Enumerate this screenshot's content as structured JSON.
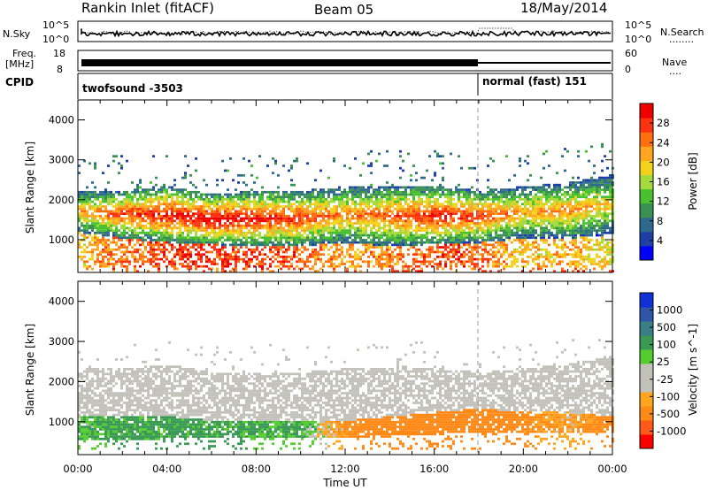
{
  "header": {
    "station": "Rankin Inlet (fitACF)",
    "beam": "Beam 05",
    "date": "18/May/2014"
  },
  "strip_nsky": {
    "left_label": "N.Sky",
    "right_label": "N.Search",
    "right_key": "........",
    "left_top": "10^5",
    "left_bottom": "10^0",
    "right_top": "10^5",
    "right_bottom": "10^0"
  },
  "strip_freq": {
    "left_label_1": "Freq.",
    "left_label_2": "[MHz]",
    "right_label": "Nave",
    "right_key": "....",
    "left_top": "18",
    "left_bottom": "8",
    "right_top": "60",
    "right_bottom": "0"
  },
  "strip_cpid": {
    "left_label": "CPID",
    "segments": [
      {
        "label": "twofsound -3503",
        "start_hour": 0
      },
      {
        "label": "normal (fast) 151",
        "start_hour": 18
      }
    ]
  },
  "x_axis": {
    "label": "Time UT",
    "range_hours": [
      0,
      24
    ],
    "ticks": [
      "00:00",
      "04:00",
      "08:00",
      "12:00",
      "16:00",
      "20:00",
      "00:00"
    ]
  },
  "colors": {
    "power_scale": [
      "#0000ff",
      "#1f3fa8",
      "#2e6a8e",
      "#3a8f52",
      "#49c030",
      "#a6d93a",
      "#f2d21a",
      "#ffa51f",
      "#ff6f0f",
      "#ff3210",
      "#ee0000"
    ],
    "velocity_scale": [
      "#ff0000",
      "#ff5a1a",
      "#ff8a18",
      "#ffa51f",
      "#c2c2ba",
      "#c2c2ba",
      "#55cc30",
      "#3a9a55",
      "#3a7f88",
      "#2e55a6",
      "#1030d8"
    ]
  },
  "chart_data": [
    {
      "type": "heatmap",
      "name": "power",
      "ylabel": "Slant Range [km]",
      "yticks": [
        1000,
        2000,
        3000,
        4000
      ],
      "ylim": [
        180,
        4500
      ],
      "xlim": [
        0,
        24
      ],
      "colorbar": {
        "label": "Power [dB]",
        "range": [
          0,
          32
        ],
        "tick_labels": [
          "4",
          "8",
          "12",
          "16",
          "20",
          "24",
          "28"
        ],
        "tick_values": [
          4,
          8,
          12,
          16,
          20,
          24,
          28
        ]
      },
      "hours": [
        0,
        2,
        4,
        6,
        8,
        10,
        12,
        14,
        16,
        18,
        20,
        22,
        24
      ],
      "band_lower_km": [
        1150,
        1000,
        900,
        850,
        800,
        800,
        900,
        800,
        850,
        900,
        1000,
        1000,
        1100
      ],
      "band_upper_km": [
        2200,
        2200,
        2300,
        2100,
        2200,
        2200,
        2300,
        2300,
        2300,
        2200,
        2300,
        2400,
        2600
      ],
      "near_band_upper_km": [
        1300,
        1100,
        1000,
        950,
        900,
        900,
        700,
        700,
        900,
        1100,
        1100,
        900,
        800
      ],
      "peak_power_db": [
        22,
        28,
        30,
        32,
        30,
        28,
        24,
        26,
        30,
        28,
        22,
        24,
        20
      ]
    },
    {
      "type": "heatmap",
      "name": "velocity",
      "ylabel": "Slant Range [km]",
      "yticks": [
        1000,
        2000,
        3000,
        4000
      ],
      "ylim": [
        180,
        4500
      ],
      "xlim": [
        0,
        24
      ],
      "colorbar": {
        "label": "Velocity [m s^-1]",
        "range": [
          -1200,
          1200
        ],
        "tick_labels": [
          "1000",
          "500",
          "100",
          "25",
          "-25",
          "-100",
          "-500",
          "-1000"
        ],
        "tick_values": [
          1000,
          500,
          100,
          25,
          -25,
          -100,
          -500,
          -1000
        ]
      },
      "hours": [
        0,
        2,
        4,
        6,
        8,
        10,
        12,
        14,
        16,
        18,
        20,
        22,
        24
      ],
      "band_lower_km": [
        500,
        500,
        550,
        550,
        600,
        600,
        600,
        600,
        650,
        700,
        700,
        700,
        700
      ],
      "band_upper_km": [
        2300,
        2300,
        2400,
        2200,
        2200,
        2200,
        2300,
        2300,
        2300,
        2200,
        2300,
        2400,
        2600
      ],
      "core_band_upper_km": [
        1100,
        1100,
        1100,
        1000,
        1000,
        1000,
        1000,
        1100,
        1200,
        1300,
        1200,
        1200,
        1100
      ],
      "core_velocity_ms": [
        80,
        150,
        150,
        150,
        120,
        100,
        -120,
        -300,
        -400,
        -350,
        -150,
        -60,
        -200
      ]
    }
  ]
}
